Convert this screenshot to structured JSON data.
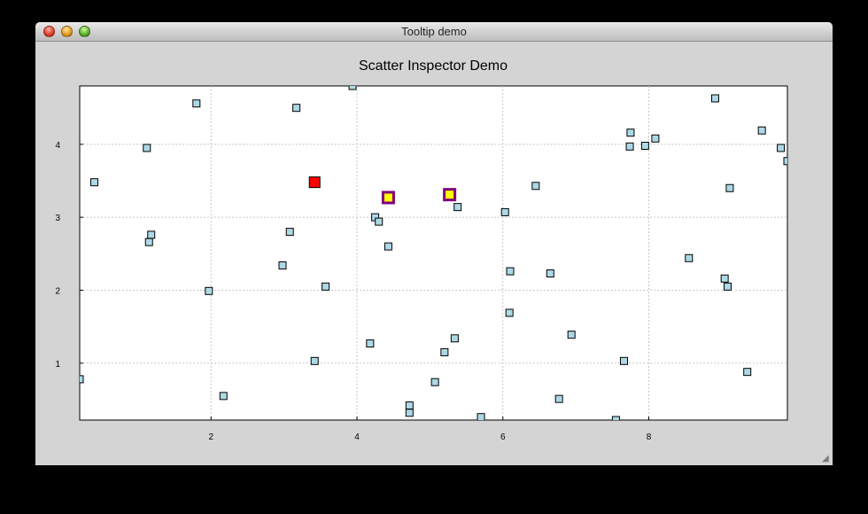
{
  "window": {
    "title": "Tooltip demo",
    "controls": {
      "close": "close-button",
      "minimize": "minimize-button",
      "zoom": "zoom-button"
    }
  },
  "chart_data": {
    "type": "scatter",
    "title": "Scatter Inspector Demo",
    "xlabel": "",
    "ylabel": "",
    "xlim": [
      0.2,
      9.9
    ],
    "ylim": [
      0.22,
      4.8
    ],
    "xticks": [
      2,
      4,
      6,
      8
    ],
    "yticks": [
      1,
      2,
      3,
      4
    ],
    "grid": true,
    "marker_color": "#add8e6",
    "marker_edge": "#000000",
    "selected_color": "#ff0000",
    "hover_fill": "#ffff00",
    "hover_edge": "#800080",
    "points": [
      {
        "x": 0.2,
        "y": 0.78
      },
      {
        "x": 0.4,
        "y": 3.48
      },
      {
        "x": 1.12,
        "y": 3.95
      },
      {
        "x": 1.15,
        "y": 2.66
      },
      {
        "x": 1.18,
        "y": 2.76
      },
      {
        "x": 1.8,
        "y": 4.56
      },
      {
        "x": 1.97,
        "y": 1.99
      },
      {
        "x": 2.17,
        "y": 0.55
      },
      {
        "x": 2.98,
        "y": 2.34
      },
      {
        "x": 3.08,
        "y": 2.8
      },
      {
        "x": 3.17,
        "y": 4.5
      },
      {
        "x": 3.42,
        "y": 1.03
      },
      {
        "x": 3.57,
        "y": 2.05
      },
      {
        "x": 3.94,
        "y": 4.8
      },
      {
        "x": 4.18,
        "y": 1.27
      },
      {
        "x": 4.25,
        "y": 3.0
      },
      {
        "x": 4.3,
        "y": 2.94
      },
      {
        "x": 4.43,
        "y": 2.6
      },
      {
        "x": 4.72,
        "y": 0.42
      },
      {
        "x": 4.72,
        "y": 0.32
      },
      {
        "x": 5.07,
        "y": 0.74
      },
      {
        "x": 5.2,
        "y": 1.15
      },
      {
        "x": 5.34,
        "y": 1.34
      },
      {
        "x": 5.38,
        "y": 3.14
      },
      {
        "x": 5.7,
        "y": 0.26
      },
      {
        "x": 6.03,
        "y": 3.07
      },
      {
        "x": 6.09,
        "y": 1.69
      },
      {
        "x": 6.1,
        "y": 2.26
      },
      {
        "x": 6.45,
        "y": 3.43
      },
      {
        "x": 6.65,
        "y": 2.23
      },
      {
        "x": 6.77,
        "y": 0.51
      },
      {
        "x": 6.94,
        "y": 1.39
      },
      {
        "x": 7.55,
        "y": 0.22
      },
      {
        "x": 7.66,
        "y": 1.03
      },
      {
        "x": 7.74,
        "y": 3.97
      },
      {
        "x": 7.75,
        "y": 4.16
      },
      {
        "x": 7.95,
        "y": 3.98
      },
      {
        "x": 8.09,
        "y": 4.08
      },
      {
        "x": 8.55,
        "y": 2.44
      },
      {
        "x": 8.91,
        "y": 4.63
      },
      {
        "x": 9.04,
        "y": 2.16
      },
      {
        "x": 9.08,
        "y": 2.05
      },
      {
        "x": 9.11,
        "y": 3.4
      },
      {
        "x": 9.35,
        "y": 0.88
      },
      {
        "x": 9.55,
        "y": 4.19
      },
      {
        "x": 9.81,
        "y": 3.95
      },
      {
        "x": 9.9,
        "y": 3.77
      }
    ],
    "selected_points": [
      {
        "x": 3.42,
        "y": 3.48
      }
    ],
    "hovered_points": [
      {
        "x": 4.43,
        "y": 3.27
      },
      {
        "x": 5.27,
        "y": 3.31
      }
    ]
  }
}
